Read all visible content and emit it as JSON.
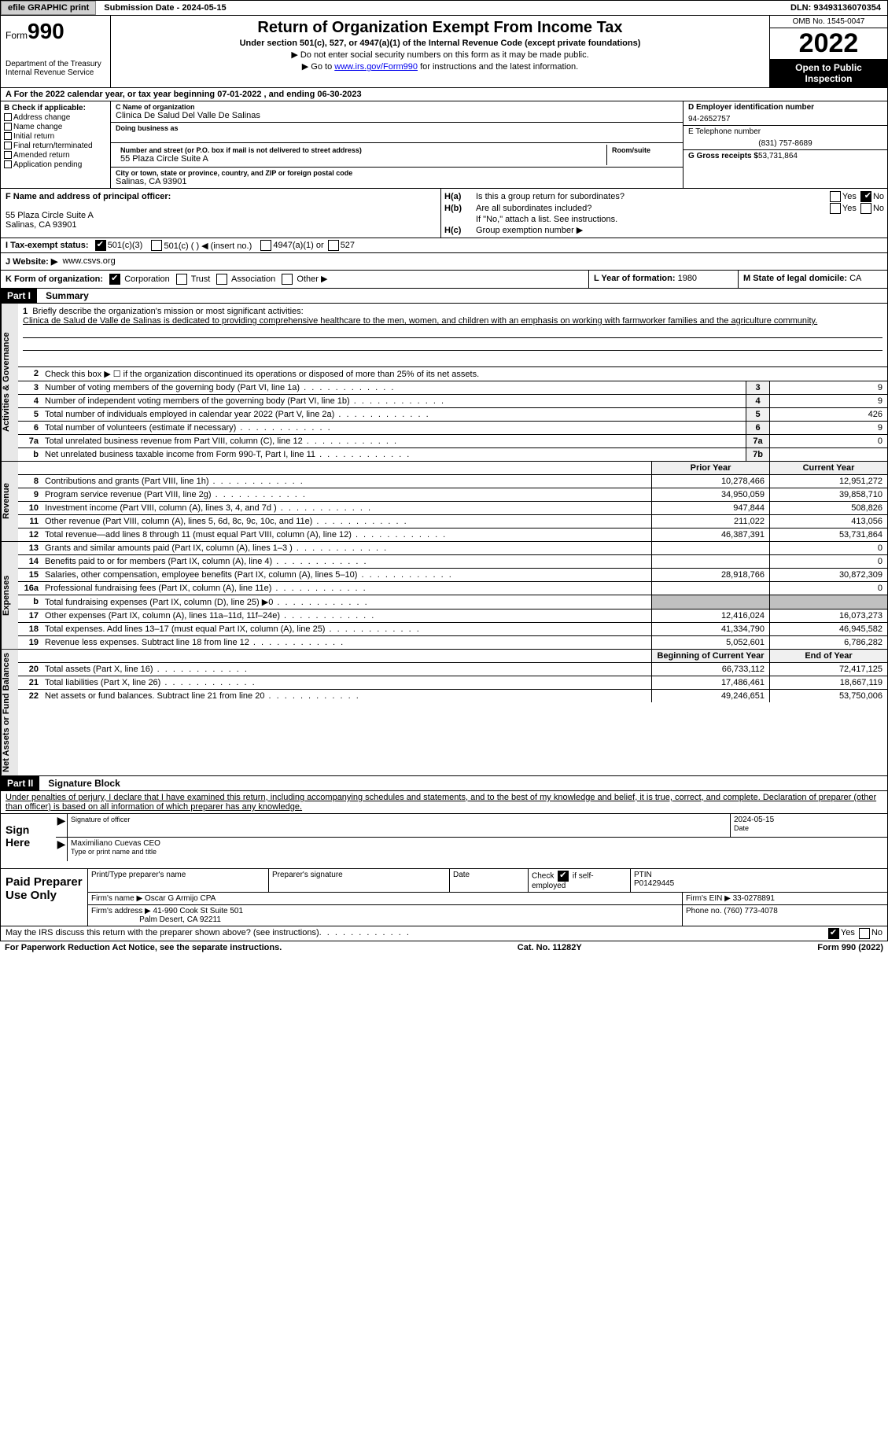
{
  "topbar": {
    "efile": "efile GRAPHIC print",
    "submission": "Submission Date - 2024-05-15",
    "dln": "DLN: 93493136070354"
  },
  "header": {
    "form_label": "Form",
    "form_num": "990",
    "dept": "Department of the Treasury",
    "irs": "Internal Revenue Service",
    "title": "Return of Organization Exempt From Income Tax",
    "sub1": "Under section 501(c), 527, or 4947(a)(1) of the Internal Revenue Code (except private foundations)",
    "sub2": "▶ Do not enter social security numbers on this form as it may be made public.",
    "sub3_pre": "▶ Go to ",
    "sub3_link": "www.irs.gov/Form990",
    "sub3_post": " for instructions and the latest information.",
    "omb": "OMB No. 1545-0047",
    "year": "2022",
    "open": "Open to Public Inspection"
  },
  "row_a": "A For the 2022 calendar year, or tax year beginning 07-01-2022    , and ending 06-30-2023",
  "col_b": {
    "hdr": "B Check if applicable:",
    "items": [
      "Address change",
      "Name change",
      "Initial return",
      "Final return/terminated",
      "Amended return",
      "Application pending"
    ]
  },
  "col_c": {
    "name_lbl": "C Name of organization",
    "name": "Clinica De Salud Del Valle De Salinas",
    "dba_lbl": "Doing business as",
    "addr_lbl": "Number and street (or P.O. box if mail is not delivered to street address)",
    "room_lbl": "Room/suite",
    "addr": "55 Plaza Circle Suite A",
    "city_lbl": "City or town, state or province, country, and ZIP or foreign postal code",
    "city": "Salinas, CA  93901"
  },
  "col_d": {
    "ein_lbl": "D Employer identification number",
    "ein": "94-2652757",
    "tel_lbl": "E Telephone number",
    "tel": "(831) 757-8689",
    "gross_lbl": "G Gross receipts $",
    "gross": "53,731,864"
  },
  "col_f": {
    "lbl": "F Name and address of principal officer:",
    "addr1": "55 Plaza Circle Suite A",
    "addr2": "Salinas, CA  93901"
  },
  "col_h": {
    "ha_lbl": "H(a)",
    "ha_txt": "Is this a group return for subordinates?",
    "hb_lbl": "H(b)",
    "hb_txt": "Are all subordinates included?",
    "hb_note": "If \"No,\" attach a list. See instructions.",
    "hc_lbl": "H(c)",
    "hc_txt": "Group exemption number ▶",
    "yes": "Yes",
    "no": "No"
  },
  "row_i": {
    "lbl": "I   Tax-exempt status:",
    "o1": "501(c)(3)",
    "o2": "501(c) (   ) ◀ (insert no.)",
    "o3": "4947(a)(1) or",
    "o4": "527"
  },
  "row_j": {
    "lbl": "J   Website: ▶",
    "val": "www.csvs.org"
  },
  "row_k": {
    "left": "K Form of organization:",
    "corp": "Corporation",
    "trust": "Trust",
    "assoc": "Association",
    "other": "Other ▶",
    "mid_lbl": "L Year of formation:",
    "mid_val": "1980",
    "right_lbl": "M State of legal domicile:",
    "right_val": "CA"
  },
  "part1": {
    "hdr": "Part I",
    "title": "Summary"
  },
  "mission": {
    "num": "1",
    "lbl": "Briefly describe the organization's mission or most significant activities:",
    "txt": "Clinica de Salud de Valle de Salinas is dedicated to providing comprehensive healthcare to the men, women, and children with an emphasis on working with farmworker families and the agriculture community."
  },
  "summary_tabs": [
    "Activities & Governance",
    "Revenue",
    "Expenses",
    "Net Assets or Fund Balances"
  ],
  "gov_rows": [
    {
      "n": "2",
      "d": "Check this box ▶ ☐ if the organization discontinued its operations or disposed of more than 25% of its net assets."
    },
    {
      "n": "3",
      "d": "Number of voting members of the governing body (Part VI, line 1a)",
      "box": "3",
      "v": "9"
    },
    {
      "n": "4",
      "d": "Number of independent voting members of the governing body (Part VI, line 1b)",
      "box": "4",
      "v": "9"
    },
    {
      "n": "5",
      "d": "Total number of individuals employed in calendar year 2022 (Part V, line 2a)",
      "box": "5",
      "v": "426"
    },
    {
      "n": "6",
      "d": "Total number of volunteers (estimate if necessary)",
      "box": "6",
      "v": "9"
    },
    {
      "n": "7a",
      "d": "Total unrelated business revenue from Part VIII, column (C), line 12",
      "box": "7a",
      "v": "0"
    },
    {
      "n": "b",
      "d": "Net unrelated business taxable income from Form 990-T, Part I, line 11",
      "box": "7b",
      "v": ""
    }
  ],
  "col_hdrs": {
    "prior": "Prior Year",
    "current": "Current Year"
  },
  "rev_rows": [
    {
      "n": "8",
      "d": "Contributions and grants (Part VIII, line 1h)",
      "p": "10,278,466",
      "c": "12,951,272"
    },
    {
      "n": "9",
      "d": "Program service revenue (Part VIII, line 2g)",
      "p": "34,950,059",
      "c": "39,858,710"
    },
    {
      "n": "10",
      "d": "Investment income (Part VIII, column (A), lines 3, 4, and 7d )",
      "p": "947,844",
      "c": "508,826"
    },
    {
      "n": "11",
      "d": "Other revenue (Part VIII, column (A), lines 5, 6d, 8c, 9c, 10c, and 11e)",
      "p": "211,022",
      "c": "413,056"
    },
    {
      "n": "12",
      "d": "Total revenue—add lines 8 through 11 (must equal Part VIII, column (A), line 12)",
      "p": "46,387,391",
      "c": "53,731,864"
    }
  ],
  "exp_rows": [
    {
      "n": "13",
      "d": "Grants and similar amounts paid (Part IX, column (A), lines 1–3 )",
      "p": "",
      "c": "0"
    },
    {
      "n": "14",
      "d": "Benefits paid to or for members (Part IX, column (A), line 4)",
      "p": "",
      "c": "0"
    },
    {
      "n": "15",
      "d": "Salaries, other compensation, employee benefits (Part IX, column (A), lines 5–10)",
      "p": "28,918,766",
      "c": "30,872,309"
    },
    {
      "n": "16a",
      "d": "Professional fundraising fees (Part IX, column (A), line 11e)",
      "p": "",
      "c": "0"
    },
    {
      "n": "b",
      "d": "Total fundraising expenses (Part IX, column (D), line 25) ▶0",
      "p": "GREY",
      "c": "GREY"
    },
    {
      "n": "17",
      "d": "Other expenses (Part IX, column (A), lines 11a–11d, 11f–24e)",
      "p": "12,416,024",
      "c": "16,073,273"
    },
    {
      "n": "18",
      "d": "Total expenses. Add lines 13–17 (must equal Part IX, column (A), line 25)",
      "p": "41,334,790",
      "c": "46,945,582"
    },
    {
      "n": "19",
      "d": "Revenue less expenses. Subtract line 18 from line 12",
      "p": "5,052,601",
      "c": "6,786,282"
    }
  ],
  "net_hdrs": {
    "beg": "Beginning of Current Year",
    "end": "End of Year"
  },
  "net_rows": [
    {
      "n": "20",
      "d": "Total assets (Part X, line 16)",
      "p": "66,733,112",
      "c": "72,417,125"
    },
    {
      "n": "21",
      "d": "Total liabilities (Part X, line 26)",
      "p": "17,486,461",
      "c": "18,667,119"
    },
    {
      "n": "22",
      "d": "Net assets or fund balances. Subtract line 21 from line 20",
      "p": "49,246,651",
      "c": "53,750,006"
    }
  ],
  "part2": {
    "hdr": "Part II",
    "title": "Signature Block"
  },
  "sig_intro": "Under penalties of perjury, I declare that I have examined this return, including accompanying schedules and statements, and to the best of my knowledge and belief, it is true, correct, and complete. Declaration of preparer (other than officer) is based on all information of which preparer has any knowledge.",
  "sign": {
    "here": "Sign Here",
    "sig_lbl": "Signature of officer",
    "date_lbl": "Date",
    "date": "2024-05-15",
    "name": "Maximiliano Cuevas CEO",
    "name_lbl": "Type or print name and title"
  },
  "prep": {
    "hdr": "Paid Preparer Use Only",
    "r1": {
      "c1": "Print/Type preparer's name",
      "c2": "Preparer's signature",
      "c3": "Date",
      "c4_lbl": "Check",
      "c4_txt": "if self-employed",
      "c5_lbl": "PTIN",
      "c5": "P01429445"
    },
    "r2": {
      "lbl": "Firm's name    ▶",
      "val": "Oscar G Armijo CPA",
      "ein_lbl": "Firm's EIN ▶",
      "ein": "33-0278891"
    },
    "r3": {
      "lbl": "Firm's address ▶",
      "val1": "41-990 Cook St Suite 501",
      "val2": "Palm Desert, CA  92211",
      "tel_lbl": "Phone no.",
      "tel": "(760) 773-4078"
    }
  },
  "footer": {
    "q": "May the IRS discuss this return with the preparer shown above? (see instructions)",
    "yes": "Yes",
    "no": "No"
  },
  "bottom": {
    "left": "For Paperwork Reduction Act Notice, see the separate instructions.",
    "mid": "Cat. No. 11282Y",
    "right": "Form 990 (2022)"
  }
}
